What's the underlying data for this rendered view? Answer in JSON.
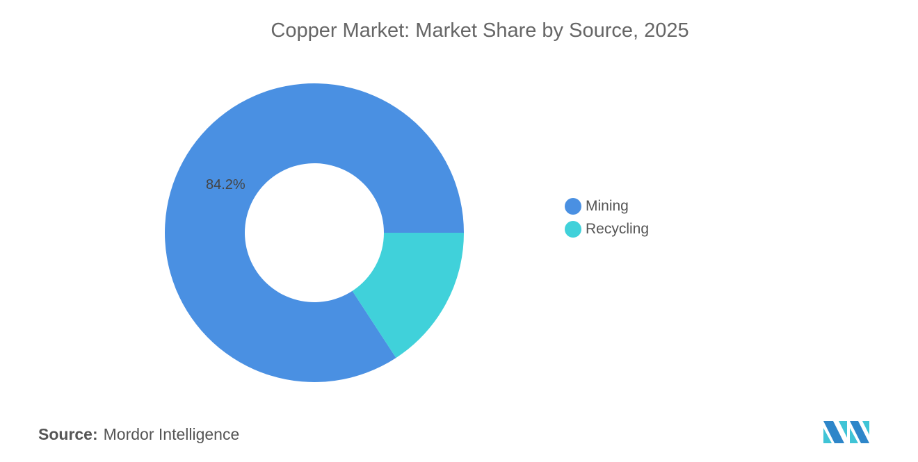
{
  "chart_data": {
    "type": "pie",
    "variant": "donut",
    "title": "Copper Market: Market Share by Source, 2025",
    "categories": [
      "Mining",
      "Recycling"
    ],
    "values": [
      84.2,
      15.8
    ],
    "colors": [
      "#4A90E2",
      "#40D1DA"
    ],
    "data_labels": [
      "84.2%",
      ""
    ],
    "legend_position": "right"
  },
  "source": {
    "label": "Source:",
    "value": "Mordor Intelligence"
  },
  "logo": {
    "text": "Mordor Intelligence"
  }
}
